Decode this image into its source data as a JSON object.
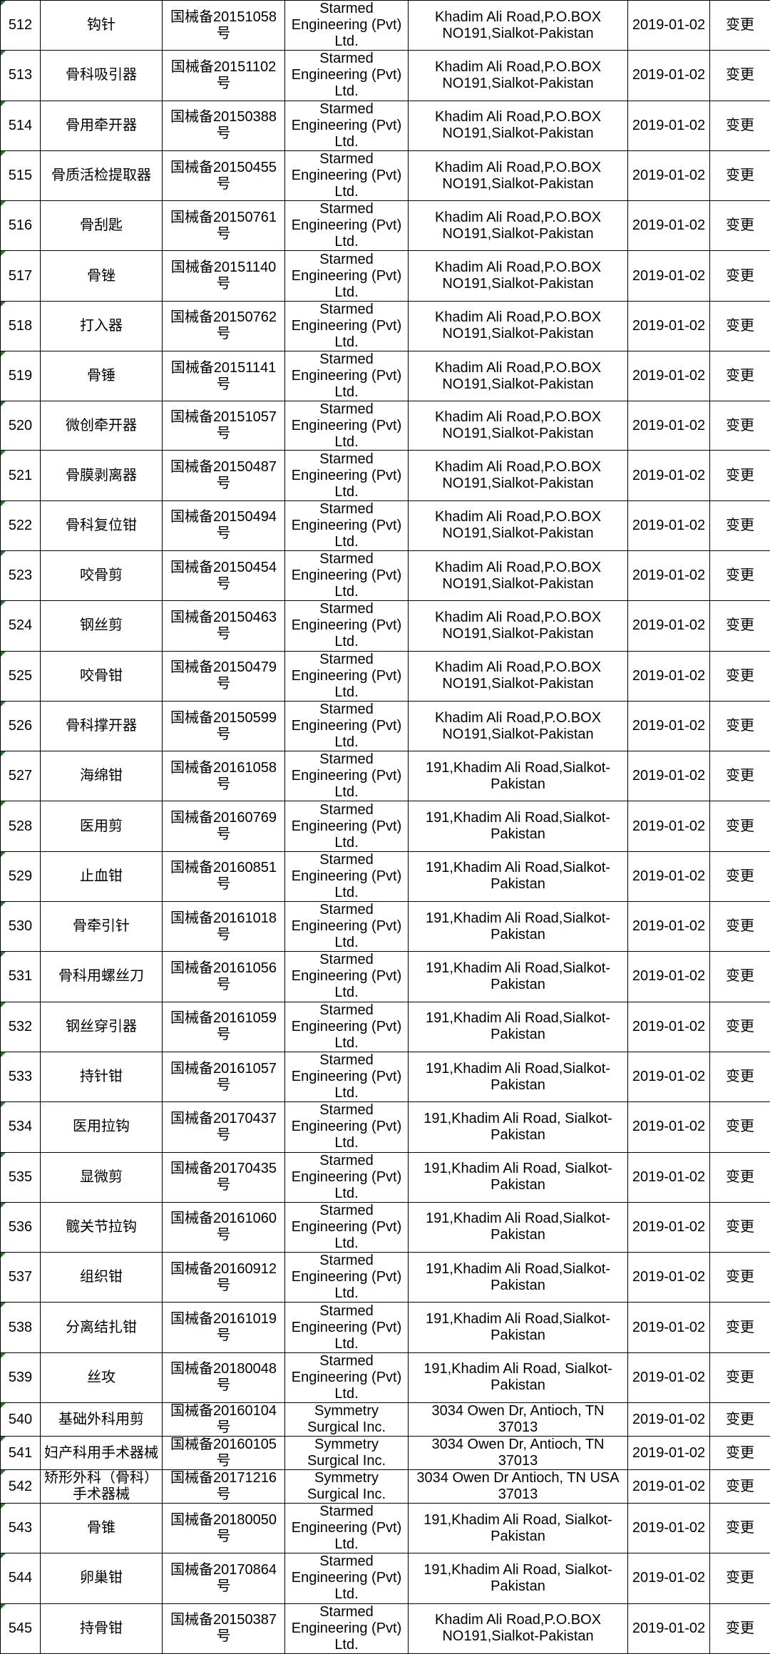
{
  "table": {
    "rows": [
      [
        "512",
        "钩针",
        "国械备20151058号",
        "Starmed Engineering (Pvt) Ltd.",
        "Khadim Ali Road,P.O.BOX NO191,Sialkot-Pakistan",
        "2019-01-02",
        "变更"
      ],
      [
        "513",
        "骨科吸引器",
        "国械备20151102号",
        "Starmed Engineering (Pvt) Ltd.",
        "Khadim Ali Road,P.O.BOX NO191,Sialkot-Pakistan",
        "2019-01-02",
        "变更"
      ],
      [
        "514",
        "骨用牵开器",
        "国械备20150388号",
        "Starmed Engineering (Pvt) Ltd.",
        "Khadim Ali Road,P.O.BOX NO191,Sialkot-Pakistan",
        "2019-01-02",
        "变更"
      ],
      [
        "515",
        "骨质活检提取器",
        "国械备20150455号",
        "Starmed Engineering (Pvt) Ltd.",
        "Khadim Ali Road,P.O.BOX NO191,Sialkot-Pakistan",
        "2019-01-02",
        "变更"
      ],
      [
        "516",
        "骨刮匙",
        "国械备20150761号",
        "Starmed Engineering (Pvt) Ltd.",
        "Khadim Ali Road,P.O.BOX NO191,Sialkot-Pakistan",
        "2019-01-02",
        "变更"
      ],
      [
        "517",
        "骨锉",
        "国械备20151140号",
        "Starmed Engineering (Pvt) Ltd.",
        "Khadim Ali Road,P.O.BOX NO191,Sialkot-Pakistan",
        "2019-01-02",
        "变更"
      ],
      [
        "518",
        "打入器",
        "国械备20150762号",
        "Starmed Engineering (Pvt) Ltd.",
        "Khadim Ali Road,P.O.BOX NO191,Sialkot-Pakistan",
        "2019-01-02",
        "变更"
      ],
      [
        "519",
        "骨锤",
        "国械备20151141号",
        "Starmed Engineering (Pvt) Ltd.",
        "Khadim Ali Road,P.O.BOX NO191,Sialkot-Pakistan",
        "2019-01-02",
        "变更"
      ],
      [
        "520",
        "微创牵开器",
        "国械备20151057号",
        "Starmed Engineering (Pvt) Ltd.",
        "Khadim Ali Road,P.O.BOX NO191,Sialkot-Pakistan",
        "2019-01-02",
        "变更"
      ],
      [
        "521",
        "骨膜剥离器",
        "国械备20150487号",
        "Starmed Engineering (Pvt) Ltd.",
        "Khadim Ali Road,P.O.BOX NO191,Sialkot-Pakistan",
        "2019-01-02",
        "变更"
      ],
      [
        "522",
        "骨科复位钳",
        "国械备20150494号",
        "Starmed Engineering (Pvt) Ltd.",
        "Khadim Ali Road,P.O.BOX NO191,Sialkot-Pakistan",
        "2019-01-02",
        "变更"
      ],
      [
        "523",
        "咬骨剪",
        "国械备20150454号",
        "Starmed Engineering (Pvt) Ltd.",
        "Khadim Ali Road,P.O.BOX NO191,Sialkot-Pakistan",
        "2019-01-02",
        "变更"
      ],
      [
        "524",
        "钢丝剪",
        "国械备20150463号",
        "Starmed Engineering (Pvt) Ltd.",
        "Khadim Ali Road,P.O.BOX NO191,Sialkot-Pakistan",
        "2019-01-02",
        "变更"
      ],
      [
        "525",
        "咬骨钳",
        "国械备20150479号",
        "Starmed Engineering (Pvt) Ltd.",
        "Khadim Ali Road,P.O.BOX NO191,Sialkot-Pakistan",
        "2019-01-02",
        "变更"
      ],
      [
        "526",
        "骨科撑开器",
        "国械备20150599号",
        "Starmed Engineering (Pvt) Ltd.",
        "Khadim Ali Road,P.O.BOX NO191,Sialkot-Pakistan",
        "2019-01-02",
        "变更"
      ],
      [
        "527",
        "海绵钳",
        "国械备20161058号",
        "Starmed Engineering (Pvt) Ltd.",
        "191,Khadim Ali Road,Sialkot-Pakistan",
        "2019-01-02",
        "变更"
      ],
      [
        "528",
        "医用剪",
        "国械备20160769号",
        "Starmed Engineering (Pvt) Ltd.",
        "191,Khadim Ali Road,Sialkot-Pakistan",
        "2019-01-02",
        "变更"
      ],
      [
        "529",
        "止血钳",
        "国械备20160851号",
        "Starmed Engineering (Pvt) Ltd.",
        "191,Khadim Ali Road,Sialkot-Pakistan",
        "2019-01-02",
        "变更"
      ],
      [
        "530",
        "骨牵引针",
        "国械备20161018号",
        "Starmed Engineering (Pvt) Ltd.",
        "191,Khadim Ali Road,Sialkot-Pakistan",
        "2019-01-02",
        "变更"
      ],
      [
        "531",
        "骨科用螺丝刀",
        "国械备20161056号",
        "Starmed Engineering (Pvt) Ltd.",
        "191,Khadim Ali Road,Sialkot-Pakistan",
        "2019-01-02",
        "变更"
      ],
      [
        "532",
        "钢丝穿引器",
        "国械备20161059号",
        "Starmed Engineering (Pvt) Ltd.",
        "191,Khadim Ali Road,Sialkot-Pakistan",
        "2019-01-02",
        "变更"
      ],
      [
        "533",
        "持针钳",
        "国械备20161057号",
        "Starmed Engineering (Pvt) Ltd.",
        "191,Khadim Ali Road,Sialkot-Pakistan",
        "2019-01-02",
        "变更"
      ],
      [
        "534",
        "医用拉钩",
        "国械备20170437号",
        "Starmed Engineering (Pvt) Ltd.",
        "191,Khadim Ali Road, Sialkot-Pakistan",
        "2019-01-02",
        "变更"
      ],
      [
        "535",
        "显微剪",
        "国械备20170435号",
        "Starmed Engineering (Pvt) Ltd.",
        "191,Khadim Ali Road, Sialkot-Pakistan",
        "2019-01-02",
        "变更"
      ],
      [
        "536",
        "髋关节拉钩",
        "国械备20161060号",
        "Starmed Engineering (Pvt) Ltd.",
        "191,Khadim Ali Road,Sialkot-Pakistan",
        "2019-01-02",
        "变更"
      ],
      [
        "537",
        "组织钳",
        "国械备20160912号",
        "Starmed Engineering (Pvt) Ltd.",
        "191,Khadim Ali Road,Sialkot-Pakistan",
        "2019-01-02",
        "变更"
      ],
      [
        "538",
        "分离结扎钳",
        "国械备20161019号",
        "Starmed Engineering (Pvt) Ltd.",
        "191,Khadim Ali Road,Sialkot-Pakistan",
        "2019-01-02",
        "变更"
      ],
      [
        "539",
        "丝攻",
        "国械备20180048号",
        "Starmed Engineering (Pvt) Ltd.",
        "191,Khadim Ali Road, Sialkot-Pakistan",
        "2019-01-02",
        "变更"
      ],
      [
        "540",
        "基础外科用剪",
        "国械备20160104号",
        "Symmetry Surgical Inc.",
        "3034 Owen Dr, Antioch, TN 37013",
        "2019-01-02",
        "变更"
      ],
      [
        "541",
        "妇产科用手术器械",
        "国械备20160105号",
        "Symmetry Surgical Inc.",
        "3034 Owen Dr, Antioch, TN 37013",
        "2019-01-02",
        "变更"
      ],
      [
        "542",
        "矫形外科（骨科）手术器械",
        "国械备20171216号",
        "Symmetry Surgical Inc.",
        "3034 Owen Dr Antioch, TN USA 37013",
        "2019-01-02",
        "变更"
      ],
      [
        "543",
        "骨锥",
        "国械备20180050号",
        "Starmed Engineering (Pvt) Ltd.",
        "191,Khadim Ali Road, Sialkot-Pakistan",
        "2019-01-02",
        "变更"
      ],
      [
        "544",
        "卵巢钳",
        "国械备20170864号",
        "Starmed Engineering (Pvt) Ltd.",
        "191,Khadim Ali Road, Sialkot-Pakistan",
        "2019-01-02",
        "变更"
      ],
      [
        "545",
        "持骨钳",
        "国械备20150387号",
        "Starmed Engineering (Pvt) Ltd.",
        "Khadim Ali Road,P.O.BOX NO191,Sialkot-Pakistan",
        "2019-01-02",
        "变更"
      ]
    ]
  }
}
